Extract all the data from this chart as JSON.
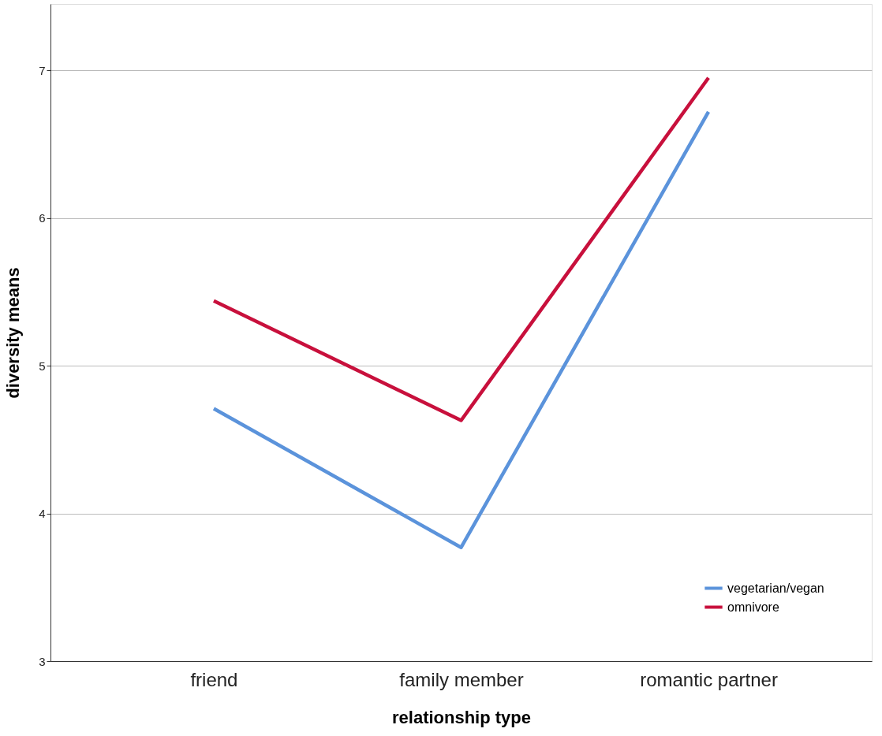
{
  "chart_data": {
    "type": "line",
    "xlabel": "relationship type",
    "ylabel": "diversity means",
    "categories": [
      "friend",
      "family member",
      "romantic partner"
    ],
    "series": [
      {
        "name": "vegetarian/vegan",
        "color": "#5b93db",
        "values": [
          4.71,
          3.77,
          6.72
        ]
      },
      {
        "name": "omnivore",
        "color": "#c8103c",
        "values": [
          5.44,
          4.63,
          6.95
        ]
      }
    ],
    "ylim": [
      3,
      7.45
    ],
    "yticks": [
      3,
      4,
      5,
      6,
      7
    ],
    "grid": "y",
    "legend": "bottom right",
    "marker": "none",
    "line_style": "solid"
  }
}
